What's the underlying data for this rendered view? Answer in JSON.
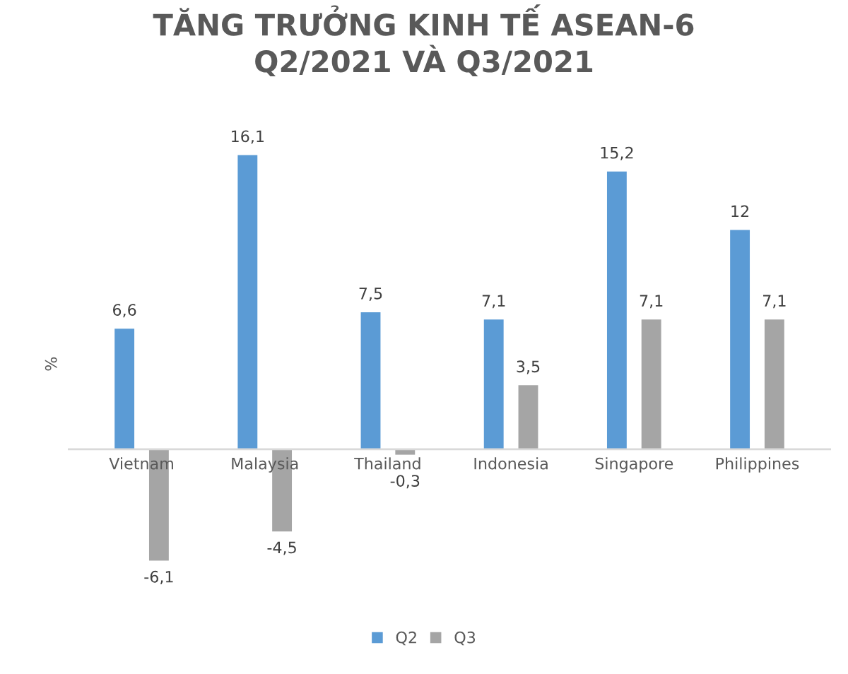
{
  "chart_data": {
    "type": "bar",
    "title": "TĂNG TRƯỞNG KINH TẾ ASEAN-6\nQ2/2021 VÀ Q3/2021",
    "ylabel": "%",
    "categories": [
      "Vietnam",
      "Malaysia",
      "Thailand",
      "Indonesia",
      "Singapore",
      "Philippines"
    ],
    "series": [
      {
        "name": "Q2",
        "color": "#5b9bd5",
        "values": [
          6.6,
          16.1,
          7.5,
          7.1,
          15.2,
          12
        ],
        "value_labels": [
          "6,6",
          "16,1",
          "7,5",
          "7,1",
          "15,2",
          "12"
        ]
      },
      {
        "name": "Q3",
        "color": "#a5a5a5",
        "values": [
          -6.1,
          -4.5,
          -0.3,
          3.5,
          7.1,
          7.1
        ],
        "value_labels": [
          "-6,1",
          "-4,5",
          "-0,3",
          "3,5",
          "7,1",
          "7,1"
        ]
      }
    ],
    "legend": "bottom"
  }
}
